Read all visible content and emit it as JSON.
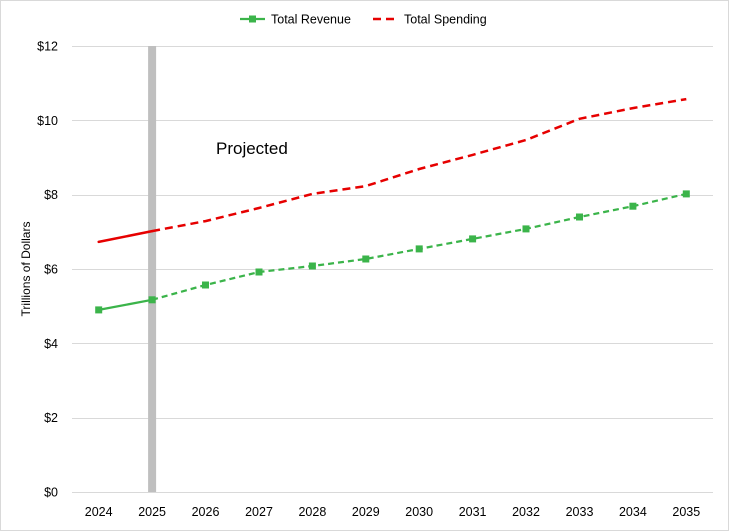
{
  "chart_data": {
    "type": "line",
    "categories": [
      "2024",
      "2025",
      "2026",
      "2027",
      "2028",
      "2029",
      "2030",
      "2031",
      "2032",
      "2033",
      "2034",
      "2035"
    ],
    "series": [
      {
        "name": "Total Revenue",
        "values": [
          4.9,
          5.17,
          5.57,
          5.92,
          6.08,
          6.27,
          6.54,
          6.81,
          7.08,
          7.4,
          7.69,
          8.02
        ],
        "color": "#3bb44a",
        "marker": "square",
        "dashed_after": "2025"
      },
      {
        "name": "Total Spending",
        "values": [
          6.73,
          7.02,
          7.29,
          7.64,
          8.02,
          8.23,
          8.69,
          9.07,
          9.47,
          10.04,
          10.33,
          10.57
        ],
        "color": "#e60000",
        "marker": "none",
        "dashed_after": "2025"
      }
    ],
    "ylabel": "Trillions of Dollars",
    "ylim": [
      0,
      12
    ],
    "y_ticks": [
      0,
      2,
      4,
      6,
      8,
      10,
      12
    ],
    "y_tick_labels": [
      "$0",
      "$2",
      "$4",
      "$6",
      "$8",
      "$10",
      "$12"
    ],
    "grid": true,
    "legend": "top-center",
    "divider_at": "2025",
    "divider_color": "#bfbfbf",
    "annotations": [
      "Projected"
    ]
  }
}
